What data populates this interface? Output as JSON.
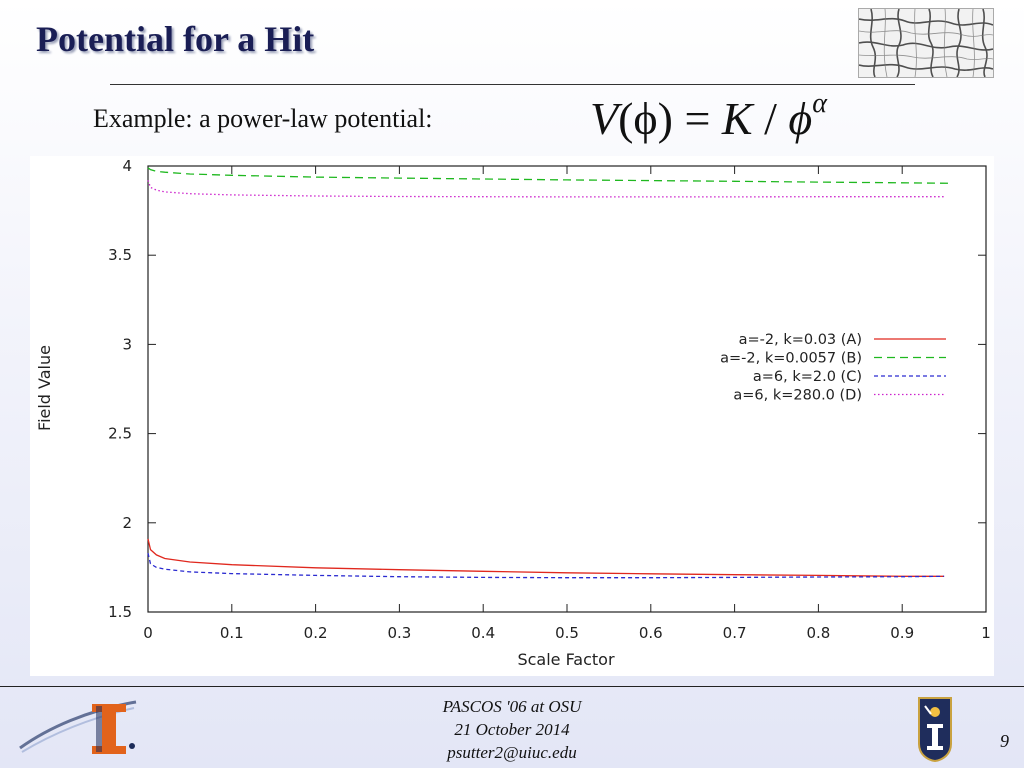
{
  "slide": {
    "title": "Potential for a Hit",
    "subtitle": "Example: a power-law potential:",
    "formula": {
      "lhs": "V",
      "arg": "(ϕ)",
      "equals": "=",
      "k": "K",
      "slash": "/",
      "phi": "ϕ",
      "exponent": "α"
    }
  },
  "footer": {
    "line1": "PASCOS '06 at OSU",
    "line2": "21 October 2014",
    "line3": "psutter2@uiuc.edu",
    "page_number": "9"
  },
  "images": {
    "thumbnail": "cosmic-web-image",
    "left_logo": "illinois-i-logo",
    "right_logo": "university-seal-logo"
  },
  "chart_data": {
    "type": "line",
    "xlabel": "Scale Factor",
    "ylabel": "Field Value",
    "xlim": [
      0,
      1
    ],
    "ylim": [
      1.5,
      4
    ],
    "xticks": [
      "0",
      "0.1",
      "0.2",
      "0.3",
      "0.4",
      "0.5",
      "0.6",
      "0.7",
      "0.8",
      "0.9",
      "1"
    ],
    "yticks": [
      "1.5",
      "2",
      "2.5",
      "3",
      "3.5",
      "4"
    ],
    "legend_position": "right",
    "grid": false,
    "series": [
      {
        "name": "a=-2, k=0.03 (A)",
        "color": "#e0281e",
        "dash": "solid",
        "x": [
          0.0,
          0.003,
          0.01,
          0.02,
          0.05,
          0.1,
          0.2,
          0.3,
          0.4,
          0.5,
          0.6,
          0.7,
          0.8,
          0.9,
          0.95
        ],
        "y": [
          1.91,
          1.85,
          1.82,
          1.8,
          1.78,
          1.765,
          1.748,
          1.737,
          1.728,
          1.72,
          1.714,
          1.709,
          1.705,
          1.7,
          1.7
        ]
      },
      {
        "name": "a=-2, k=0.0057 (B)",
        "color": "#1fb81f",
        "dash": "8,5",
        "x": [
          0.0,
          0.003,
          0.01,
          0.02,
          0.05,
          0.1,
          0.2,
          0.3,
          0.4,
          0.5,
          0.6,
          0.7,
          0.8,
          0.9,
          0.96
        ],
        "y": [
          3.99,
          3.98,
          3.97,
          3.965,
          3.955,
          3.948,
          3.938,
          3.932,
          3.927,
          3.922,
          3.918,
          3.914,
          3.91,
          3.906,
          3.903
        ]
      },
      {
        "name": "a=6, k=2.0 (C)",
        "color": "#2a2ad0",
        "dash": "4,3",
        "x": [
          0.0,
          0.003,
          0.01,
          0.02,
          0.05,
          0.1,
          0.2,
          0.3,
          0.4,
          0.5,
          0.6,
          0.7,
          0.8,
          0.9,
          0.95
        ],
        "y": [
          1.83,
          1.77,
          1.75,
          1.74,
          1.725,
          1.715,
          1.705,
          1.698,
          1.694,
          1.692,
          1.692,
          1.694,
          1.696,
          1.698,
          1.7
        ]
      },
      {
        "name": "a=6, k=280.0 (D)",
        "color": "#cc22cc",
        "dash": "1.5,2.5",
        "x": [
          0.0,
          0.003,
          0.01,
          0.02,
          0.05,
          0.1,
          0.2,
          0.3,
          0.4,
          0.5,
          0.6,
          0.7,
          0.8,
          0.9,
          0.95
        ],
        "y": [
          3.92,
          3.88,
          3.865,
          3.855,
          3.845,
          3.838,
          3.832,
          3.829,
          3.828,
          3.827,
          3.827,
          3.827,
          3.828,
          3.828,
          3.828
        ]
      }
    ]
  }
}
